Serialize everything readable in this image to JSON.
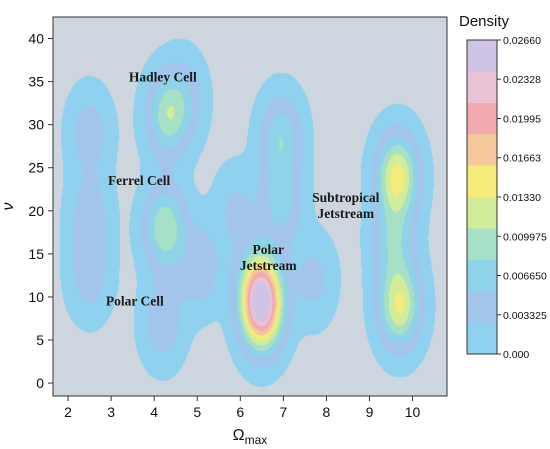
{
  "chart_data": {
    "type": "heatmap",
    "subtype": "filled-contour density",
    "xlabel": "Ω",
    "xlabel_subscript": "max",
    "ylabel": "ν",
    "xlim": [
      1.65,
      10.8
    ],
    "ylim": [
      -1.5,
      42.5
    ],
    "x_ticks": [
      2,
      3,
      4,
      5,
      6,
      7,
      8,
      9,
      10
    ],
    "y_ticks": [
      0,
      5,
      10,
      15,
      20,
      25,
      30,
      35,
      40
    ],
    "grid": false,
    "colorbar": {
      "title": "Density",
      "range": [
        0,
        0.0266
      ],
      "tick_values": [
        0,
        0.003325,
        0.00665,
        0.009975,
        0.0133,
        0.01663,
        0.01995,
        0.02328,
        0.0266
      ],
      "tick_labels": [
        "0.000",
        "0.003325",
        "0.006650",
        "0.009975",
        "0.01330",
        "0.01663",
        "0.01995",
        "0.02328",
        "0.02660"
      ],
      "colors": [
        "#8fd1ee",
        "#a3c5ec",
        "#8ed3e8",
        "#a6e0c6",
        "#d3ec9a",
        "#f4eb7a",
        "#f4c79c",
        "#f2a9b0",
        "#e9c2d4",
        "#cfc4e6"
      ]
    },
    "density_peaks": [
      {
        "x": 6.5,
        "y": 8.5,
        "density": 0.021
      },
      {
        "x": 6.45,
        "y": 11.5,
        "density": 0.011
      },
      {
        "x": 9.65,
        "y": 24.0,
        "density": 0.0145
      },
      {
        "x": 9.7,
        "y": 9.0,
        "density": 0.0135
      },
      {
        "x": 9.55,
        "y": 16.5,
        "density": 0.007
      },
      {
        "x": 4.25,
        "y": 18.0,
        "density": 0.0105
      },
      {
        "x": 4.3,
        "y": 31.0,
        "density": 0.009
      },
      {
        "x": 4.7,
        "y": 33.0,
        "density": 0.004
      },
      {
        "x": 6.95,
        "y": 28.5,
        "density": 0.0075
      },
      {
        "x": 6.95,
        "y": 21.0,
        "density": 0.0065
      },
      {
        "x": 5.05,
        "y": 13.5,
        "density": 0.005
      },
      {
        "x": 4.2,
        "y": 7.0,
        "density": 0.0045
      },
      {
        "x": 2.5,
        "y": 29.0,
        "density": 0.0042
      },
      {
        "x": 2.5,
        "y": 19.5,
        "density": 0.0042
      },
      {
        "x": 2.5,
        "y": 12.5,
        "density": 0.0042
      },
      {
        "x": 7.7,
        "y": 12.0,
        "density": 0.0035
      },
      {
        "x": 5.9,
        "y": 20.0,
        "density": 0.0032
      }
    ],
    "annotations": [
      {
        "lines": [
          "Hadley Cell"
        ],
        "x": 4.2,
        "y": 35.0
      },
      {
        "lines": [
          "Ferrel Cell"
        ],
        "x": 3.65,
        "y": 23.0
      },
      {
        "lines": [
          "Polar Cell"
        ],
        "x": 3.55,
        "y": 9.0
      },
      {
        "lines": [
          "Polar",
          "Jetstream"
        ],
        "x": 6.65,
        "y": 15.0
      },
      {
        "lines": [
          "Subtropical",
          "Jetstream"
        ],
        "x": 8.45,
        "y": 21.0
      }
    ]
  }
}
